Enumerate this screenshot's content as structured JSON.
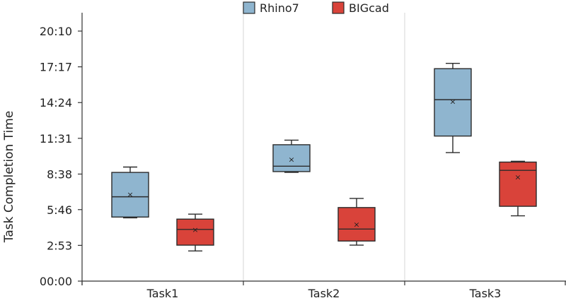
{
  "chart_data": {
    "type": "box",
    "title": "",
    "xlabel": "",
    "ylabel": "Task Completion Time",
    "y_unit": "mm:ss",
    "ylim": [
      "00:00",
      "20:10"
    ],
    "y_ticks": [
      "00:00",
      "2:53",
      "5:46",
      "8:38",
      "11:31",
      "14:24",
      "17:17",
      "20:10"
    ],
    "categories": [
      "Task1",
      "Task2",
      "Task3"
    ],
    "legend_position": "top-center",
    "grid": {
      "vertical_separators": true,
      "horizontal": false
    },
    "series": [
      {
        "name": "Rhino7",
        "color": "#8fb5cf",
        "boxes": [
          {
            "category": "Task1",
            "min": "5:06",
            "q1": "5:10",
            "median": "6:48",
            "q3": "8:46",
            "max": "9:12",
            "mean": "7:00"
          },
          {
            "category": "Task2",
            "min": "8:46",
            "q1": "8:50",
            "median": "9:16",
            "q3": "11:00",
            "max": "11:22",
            "mean": "9:50"
          },
          {
            "category": "Task3",
            "min": "10:22",
            "q1": "11:42",
            "median": "14:38",
            "q3": "17:08",
            "max": "17:34",
            "mean": "14:30"
          }
        ]
      },
      {
        "name": "BIGcad",
        "color": "#d9433a",
        "boxes": [
          {
            "category": "Task1",
            "min": "2:26",
            "q1": "2:54",
            "median": "4:10",
            "q3": "5:00",
            "max": "5:24",
            "mean": "4:10"
          },
          {
            "category": "Task2",
            "min": "2:54",
            "q1": "3:14",
            "median": "4:12",
            "q3": "5:56",
            "max": "6:40",
            "mean": "4:36"
          },
          {
            "category": "Task3",
            "min": "5:16",
            "q1": "6:02",
            "median": "8:56",
            "q3": "9:36",
            "max": "9:40",
            "mean": "8:25"
          }
        ]
      }
    ]
  }
}
